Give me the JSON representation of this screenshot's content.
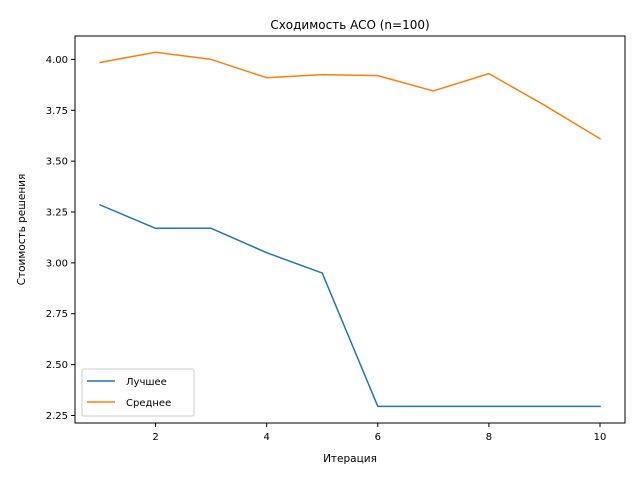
{
  "chart_data": {
    "type": "line",
    "title": "Сходимость ACO (n=100)",
    "xlabel": "Итерация",
    "ylabel": "Стоимость решения",
    "x": [
      1,
      2,
      3,
      4,
      5,
      6,
      7,
      8,
      9,
      10
    ],
    "xlim": [
      0.55,
      10.45
    ],
    "ylim": [
      2.213,
      4.115
    ],
    "xticks": [
      2,
      4,
      6,
      8,
      10
    ],
    "yticks": [
      2.25,
      2.5,
      2.75,
      3.0,
      3.25,
      3.5,
      3.75,
      4.0
    ],
    "xtick_labels": [
      "2",
      "4",
      "6",
      "8",
      "10"
    ],
    "ytick_labels": [
      "2.25",
      "2.50",
      "2.75",
      "3.00",
      "3.25",
      "3.50",
      "3.75",
      "4.00"
    ],
    "grid": false,
    "legend_position": "lower-left",
    "series": [
      {
        "name": "Лучшее",
        "color": "#1f77b4",
        "values": [
          3.285,
          3.17,
          3.17,
          3.05,
          2.95,
          2.295,
          2.295,
          2.295,
          2.295,
          2.295
        ]
      },
      {
        "name": "Среднее",
        "color": "#ff7f0e",
        "values": [
          3.985,
          4.035,
          4.0,
          3.91,
          3.925,
          3.92,
          3.845,
          3.93,
          3.775,
          3.61
        ]
      }
    ]
  }
}
